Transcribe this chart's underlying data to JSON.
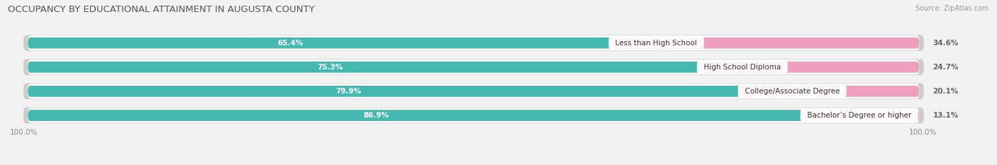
{
  "title": "OCCUPANCY BY EDUCATIONAL ATTAINMENT IN AUGUSTA COUNTY",
  "source": "Source: ZipAtlas.com",
  "categories": [
    "Less than High School",
    "High School Diploma",
    "College/Associate Degree",
    "Bachelor’s Degree or higher"
  ],
  "owner_values": [
    65.4,
    75.3,
    79.9,
    86.9
  ],
  "renter_values": [
    34.6,
    24.7,
    20.1,
    13.1
  ],
  "owner_color": "#45b8b0",
  "renter_color": "#f0a0be",
  "background_color": "#f2f2f2",
  "bar_bg_color": "#e2e2e2",
  "bar_shadow_color": "#cccccc",
  "title_fontsize": 9.5,
  "source_fontsize": 7,
  "label_fontsize": 7.5,
  "value_fontsize": 7.5,
  "legend_fontsize": 8,
  "axis_label_fontsize": 7.5,
  "bar_height": 0.62,
  "x_left_label": "100.0%",
  "x_right_label": "100.0%"
}
